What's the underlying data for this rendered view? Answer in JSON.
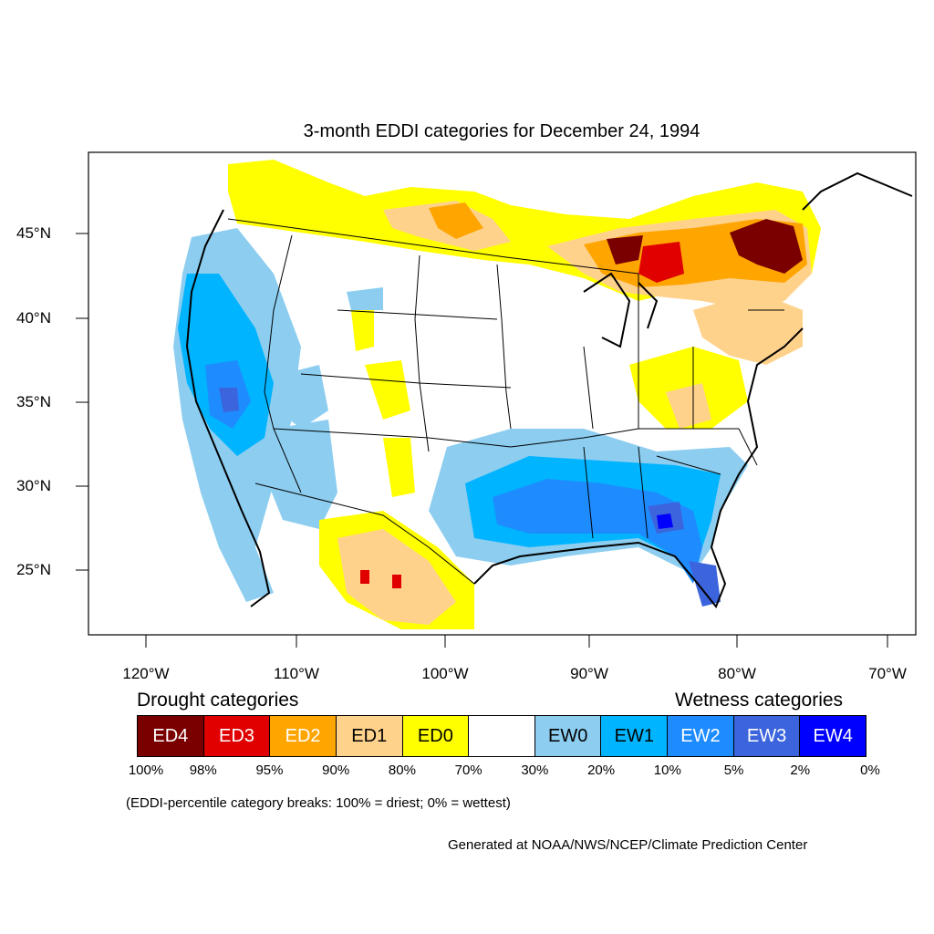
{
  "title": "3-month EDDI categories for December 24, 1994",
  "y_ticks": [
    {
      "label": "45°N",
      "lat": 45
    },
    {
      "label": "40°N",
      "lat": 40
    },
    {
      "label": "35°N",
      "lat": 35
    },
    {
      "label": "30°N",
      "lat": 30
    },
    {
      "label": "25°N",
      "lat": 25
    }
  ],
  "x_ticks": [
    {
      "label": "120°W",
      "lon": -120
    },
    {
      "label": "110°W",
      "lon": -110
    },
    {
      "label": "100°W",
      "lon": -100
    },
    {
      "label": "90°W",
      "lon": -90
    },
    {
      "label": "80°W",
      "lon": -80
    },
    {
      "label": "70°W",
      "lon": -70
    }
  ],
  "legend": {
    "drought_heading": "Drought categories",
    "wetness_heading": "Wetness categories",
    "categories": [
      {
        "label": "ED4",
        "color": "#7a0000",
        "text_color": "#ffffff"
      },
      {
        "label": "ED3",
        "color": "#e00000",
        "text_color": "#ffffff"
      },
      {
        "label": "ED2",
        "color": "#ffa500",
        "text_color": "#ffffff"
      },
      {
        "label": "ED1",
        "color": "#ffd28c",
        "text_color": "#000000"
      },
      {
        "label": "ED0",
        "color": "#ffff00",
        "text_color": "#000000"
      },
      {
        "label": "",
        "color": "#ffffff",
        "text_color": "#000000"
      },
      {
        "label": "EW0",
        "color": "#8ccdf0",
        "text_color": "#000000"
      },
      {
        "label": "EW1",
        "color": "#00b4ff",
        "text_color": "#000000"
      },
      {
        "label": "EW2",
        "color": "#1e8cff",
        "text_color": "#ffffff"
      },
      {
        "label": "EW3",
        "color": "#3c64dc",
        "text_color": "#ffffff"
      },
      {
        "label": "EW4",
        "color": "#0000ff",
        "text_color": "#ffffff"
      }
    ],
    "breaks": [
      "100%",
      "98%",
      "95%",
      "90%",
      "80%",
      "70%",
      "30%",
      "20%",
      "10%",
      "5%",
      "2%",
      "0%"
    ]
  },
  "note": "(EDDI-percentile category breaks: 100% = driest; 0% = wettest)",
  "credit": "Generated at NOAA/NWS/NCEP/Climate Prediction Center"
}
